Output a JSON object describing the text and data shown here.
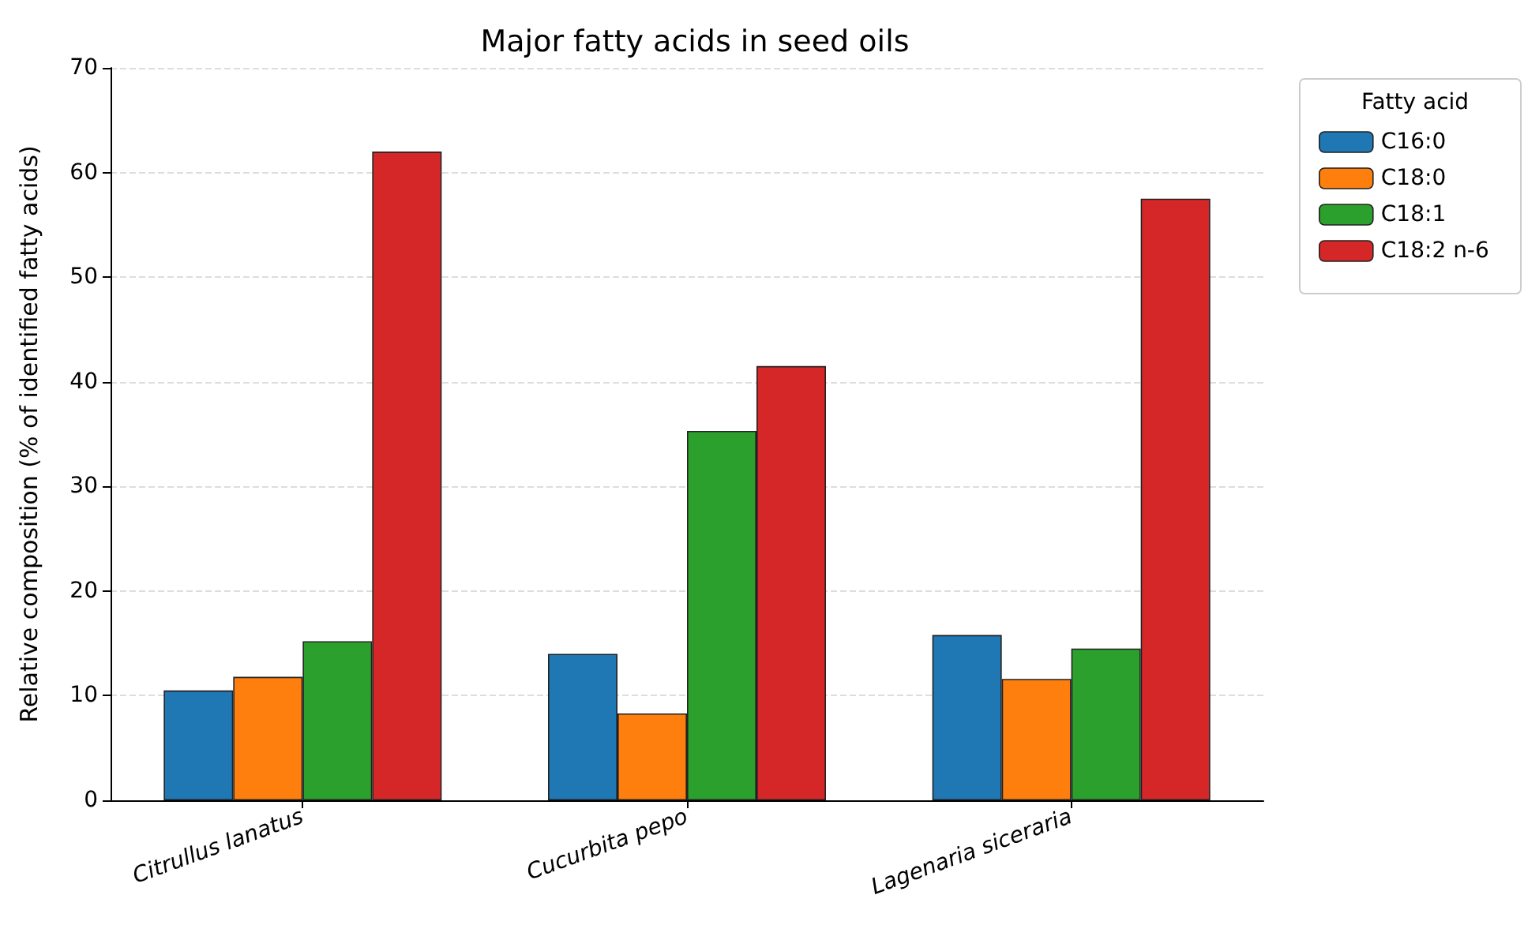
{
  "chart_data": {
    "type": "bar",
    "title": "Major fatty acids in seed oils",
    "ylabel": "Relative composition (% of identified fatty acids)",
    "legend_title": "Fatty acid",
    "categories": [
      "Citrullus lanatus",
      "Cucurbita pepo",
      "Lagenaria siceraria"
    ],
    "series": [
      {
        "name": "C16:0",
        "color": "#1f77b4",
        "values": [
          10.5,
          14.0,
          15.8
        ]
      },
      {
        "name": "C18:0",
        "color": "#ff7f0e",
        "values": [
          11.8,
          8.3,
          11.6
        ]
      },
      {
        "name": "C18:1",
        "color": "#2ca02c",
        "values": [
          15.2,
          35.3,
          14.5
        ]
      },
      {
        "name": "C18:2 n-6",
        "color": "#d62728",
        "values": [
          62.0,
          41.5,
          57.5
        ]
      }
    ],
    "ylim": [
      0,
      70
    ],
    "yticks": [
      0,
      10,
      20,
      30,
      40,
      50,
      60,
      70
    ],
    "grid": "y",
    "legend": "top right"
  }
}
